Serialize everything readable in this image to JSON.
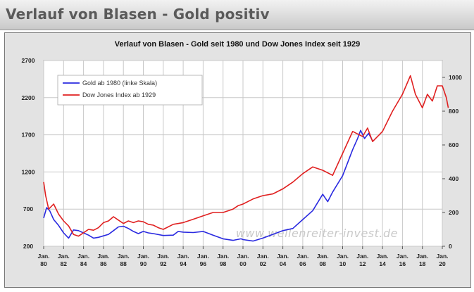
{
  "header": {
    "title": "Verlauf von Blasen - Gold positiv"
  },
  "watermark": "www.wellenreiter-invest.de",
  "chart_data": {
    "type": "line",
    "title": "Verlauf von Blasen - Gold seit 1980 und Dow Jones Index seit 1929",
    "xlabel": "",
    "ylabel": "",
    "grid": true,
    "legend_position": "top-left",
    "x_categories": [
      [
        "Jan.",
        "80"
      ],
      [
        "Jan.",
        "82"
      ],
      [
        "Jan.",
        "84"
      ],
      [
        "Jan.",
        "86"
      ],
      [
        "Jan.",
        "88"
      ],
      [
        "Jan.",
        "90"
      ],
      [
        "Jan.",
        "92"
      ],
      [
        "Jan.",
        "94"
      ],
      [
        "Jan.",
        "96"
      ],
      [
        "Jan.",
        "98"
      ],
      [
        "Jan.",
        "00"
      ],
      [
        "Jan.",
        "02"
      ],
      [
        "Jan.",
        "04"
      ],
      [
        "Jan.",
        "06"
      ],
      [
        "Jan.",
        "08"
      ],
      [
        "Jan.",
        "10"
      ],
      [
        "Jan.",
        "12"
      ],
      [
        "Jan.",
        "14"
      ],
      [
        "Jan.",
        "16"
      ],
      [
        "Jan.",
        "18"
      ],
      [
        "Jan.",
        "20"
      ]
    ],
    "x_range": [
      1980,
      2020
    ],
    "y_left": {
      "ticks": [
        "200",
        "700",
        "1200",
        "1700",
        "2200",
        "2700"
      ],
      "range": [
        200,
        2700
      ]
    },
    "y_right": {
      "ticks": [
        "0",
        "200",
        "400",
        "600",
        "800",
        "1000"
      ],
      "range": [
        0,
        1100
      ]
    },
    "series": [
      {
        "name": "Gold ab 1980 (linke Skala)",
        "axis": "left",
        "color": "#2a2ae0",
        "points": [
          [
            1980.0,
            580
          ],
          [
            1980.3,
            720
          ],
          [
            1980.6,
            680
          ],
          [
            1981.0,
            560
          ],
          [
            1981.5,
            480
          ],
          [
            1982.0,
            380
          ],
          [
            1982.5,
            310
          ],
          [
            1983.0,
            420
          ],
          [
            1983.5,
            410
          ],
          [
            1984.0,
            380
          ],
          [
            1984.5,
            350
          ],
          [
            1985.0,
            310
          ],
          [
            1985.5,
            320
          ],
          [
            1986.0,
            340
          ],
          [
            1986.5,
            360
          ],
          [
            1987.0,
            410
          ],
          [
            1987.5,
            460
          ],
          [
            1988.0,
            470
          ],
          [
            1988.5,
            440
          ],
          [
            1989.0,
            400
          ],
          [
            1989.5,
            370
          ],
          [
            1990.0,
            400
          ],
          [
            1990.5,
            380
          ],
          [
            1991.0,
            370
          ],
          [
            1992.0,
            345
          ],
          [
            1993.0,
            350
          ],
          [
            1993.5,
            400
          ],
          [
            1994.0,
            390
          ],
          [
            1995.0,
            385
          ],
          [
            1996.0,
            400
          ],
          [
            1997.0,
            350
          ],
          [
            1998.0,
            300
          ],
          [
            1999.0,
            280
          ],
          [
            1999.8,
            300
          ],
          [
            2000.0,
            290
          ],
          [
            2001.0,
            270
          ],
          [
            2002.0,
            310
          ],
          [
            2003.0,
            360
          ],
          [
            2004.0,
            410
          ],
          [
            2005.0,
            440
          ],
          [
            2006.0,
            560
          ],
          [
            2007.0,
            680
          ],
          [
            2008.0,
            900
          ],
          [
            2008.5,
            800
          ],
          [
            2009.0,
            930
          ],
          [
            2010.0,
            1150
          ],
          [
            2011.0,
            1500
          ],
          [
            2011.5,
            1650
          ],
          [
            2011.8,
            1760
          ],
          [
            2012.2,
            1650
          ],
          [
            2012.6,
            1720
          ],
          [
            2013.0,
            1620
          ]
        ]
      },
      {
        "name": "Dow Jones Index ab 1929",
        "axis": "right",
        "color": "#e02020",
        "points": [
          [
            1980.0,
            380
          ],
          [
            1980.2,
            300
          ],
          [
            1980.5,
            220
          ],
          [
            1981.0,
            250
          ],
          [
            1981.5,
            190
          ],
          [
            1982.0,
            150
          ],
          [
            1982.5,
            120
          ],
          [
            1983.0,
            70
          ],
          [
            1983.5,
            60
          ],
          [
            1984.0,
            80
          ],
          [
            1984.5,
            100
          ],
          [
            1985.0,
            95
          ],
          [
            1985.5,
            110
          ],
          [
            1986.0,
            140
          ],
          [
            1986.5,
            150
          ],
          [
            1987.0,
            175
          ],
          [
            1987.5,
            155
          ],
          [
            1988.0,
            135
          ],
          [
            1988.5,
            150
          ],
          [
            1989.0,
            140
          ],
          [
            1989.5,
            150
          ],
          [
            1990.0,
            145
          ],
          [
            1990.5,
            130
          ],
          [
            1991.0,
            125
          ],
          [
            1991.5,
            110
          ],
          [
            1992.0,
            100
          ],
          [
            1993.0,
            130
          ],
          [
            1994.0,
            140
          ],
          [
            1995.0,
            160
          ],
          [
            1996.0,
            180
          ],
          [
            1997.0,
            200
          ],
          [
            1998.0,
            200
          ],
          [
            1999.0,
            220
          ],
          [
            1999.5,
            240
          ],
          [
            2000.0,
            250
          ],
          [
            2001.0,
            280
          ],
          [
            2002.0,
            300
          ],
          [
            2003.0,
            310
          ],
          [
            2004.0,
            340
          ],
          [
            2005.0,
            380
          ],
          [
            2006.0,
            430
          ],
          [
            2007.0,
            470
          ],
          [
            2008.0,
            450
          ],
          [
            2009.0,
            420
          ],
          [
            2010.0,
            550
          ],
          [
            2011.0,
            680
          ],
          [
            2012.0,
            650
          ],
          [
            2012.5,
            700
          ],
          [
            2013.0,
            620
          ],
          [
            2014.0,
            680
          ],
          [
            2015.0,
            800
          ],
          [
            2016.0,
            900
          ],
          [
            2016.8,
            1010
          ],
          [
            2017.3,
            900
          ],
          [
            2018.0,
            820
          ],
          [
            2018.5,
            900
          ],
          [
            2019.0,
            860
          ],
          [
            2019.5,
            950
          ],
          [
            2020.0,
            950
          ],
          [
            2020.4,
            880
          ],
          [
            2020.6,
            820
          ]
        ]
      }
    ]
  }
}
